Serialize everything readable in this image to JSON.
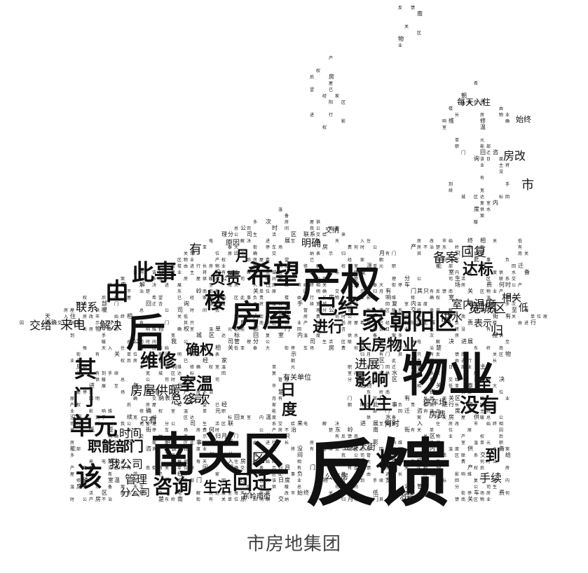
{
  "caption": "市房地集团",
  "words": [
    "反馈",
    "南关区",
    "物业",
    "产权",
    "后",
    "房屋",
    "希望",
    "已经",
    "家",
    "朝阳区",
    "此事",
    "负责",
    "楼",
    "由",
    "进行",
    "长房物业",
    "影响",
    "维修",
    "确权",
    "室温",
    "单元",
    "职能部门",
    "回迁",
    "咨询",
    "该",
    "日",
    "度",
    "业主",
    "将",
    "没有",
    "到",
    "手续",
    "宽城区",
    "达标",
    "回复",
    "室内温度",
    "供水",
    "备案",
    "多次",
    "房屋供暖",
    "总公司",
    "时间",
    "我公司",
    "管理",
    "分公司",
    "生活",
    "区",
    "联系",
    "交给",
    "来电",
    "解决",
    "进展",
    "至",
    "每天入住",
    "房改",
    "市",
    "始终",
    "相关",
    "低",
    "亚泰大街",
    "停车场",
    "房费",
    "何时",
    "公产房",
    "不治楚",
    "东岭南街",
    "有关单位",
    "原因",
    "明确",
    "交纳",
    "表示",
    "归",
    "月",
    "有",
    "门",
    "其",
    "只有"
  ],
  "colors": {
    "ink": "#111111",
    "caption": "#444444",
    "background": "#ffffff"
  }
}
